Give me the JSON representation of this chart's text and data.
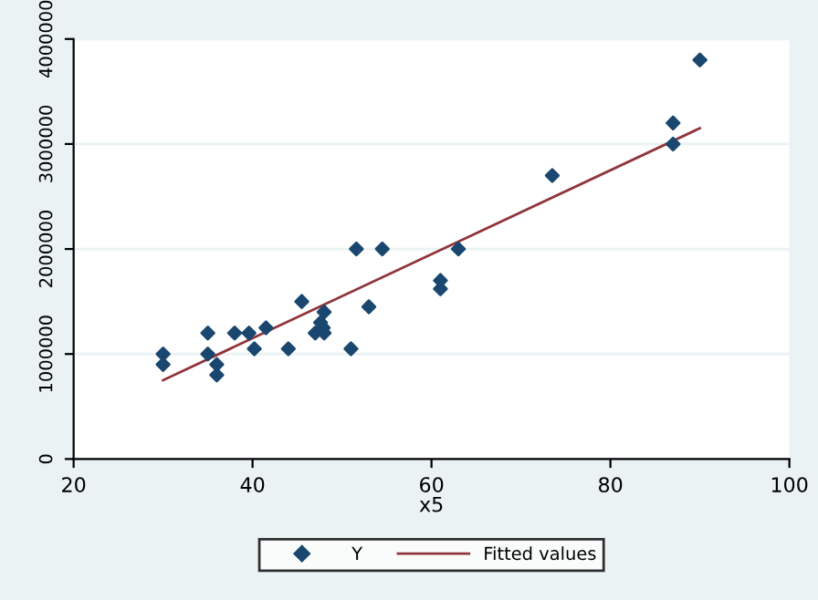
{
  "chart_data": {
    "type": "scatter",
    "xlabel": "x5",
    "xlim": [
      20,
      100
    ],
    "xticks": [
      20,
      40,
      60,
      80,
      100
    ],
    "ylim": [
      0,
      4000000
    ],
    "yticks": [
      0,
      1000000,
      2000000,
      3000000,
      4000000
    ],
    "grid": "y",
    "legend": "bottom",
    "series": [
      {
        "name": "Y",
        "marker": "diamond",
        "color": "#1a476f",
        "x": [
          30,
          30,
          35,
          35,
          36,
          36,
          38,
          39.6,
          40.2,
          41.5,
          44,
          45.5,
          47,
          47.6,
          48,
          48,
          47.9,
          51,
          51.6,
          53,
          54.5,
          61,
          61,
          63,
          73.5,
          87,
          87,
          90
        ],
        "values": [
          1000000,
          900000,
          1200000,
          1000000,
          900000,
          800000,
          1200000,
          1200000,
          1050000,
          1250000,
          1050000,
          1500000,
          1200000,
          1300000,
          1400000,
          1200000,
          1250000,
          1050000,
          2000000,
          1450000,
          2000000,
          1700000,
          1620000,
          2000000,
          2700000,
          3200000,
          3000000,
          3800000
        ]
      },
      {
        "name": "Fitted values",
        "type": "line",
        "color": "#90353b",
        "line_style": "solid",
        "x": [
          30,
          90
        ],
        "values": [
          750000,
          3150000
        ]
      }
    ]
  }
}
